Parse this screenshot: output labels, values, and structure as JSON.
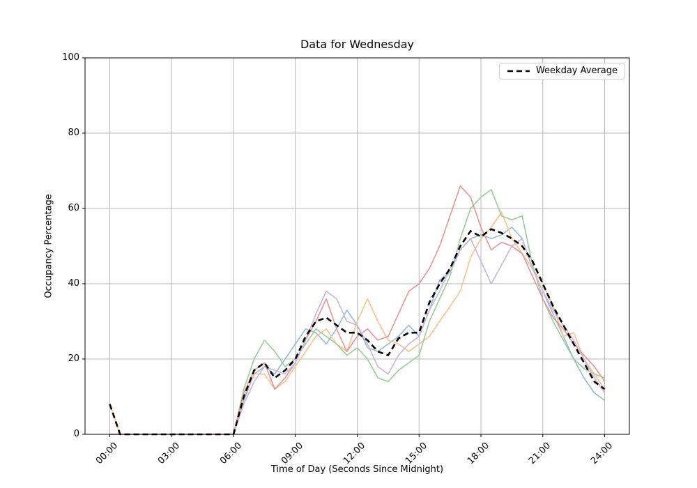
{
  "chart_data": {
    "type": "line",
    "title": "Data for Wednesday",
    "xlabel": "Time of Day (Seconds Since Midnight)",
    "ylabel": "Occupancy Percentage",
    "grid": true,
    "legend_position": "upper right",
    "legend_entries": [
      "Weekday Average"
    ],
    "ylim": [
      0,
      100
    ],
    "xlim_hours": [
      -1.2,
      25.2
    ],
    "x_start_hour": 0,
    "x_step_hours": 0.5,
    "y_ticks": [
      {
        "value": 0,
        "label": "0"
      },
      {
        "value": 20,
        "label": "20"
      },
      {
        "value": 40,
        "label": "40"
      },
      {
        "value": 60,
        "label": "60"
      },
      {
        "value": 80,
        "label": "80"
      },
      {
        "value": 100,
        "label": "100"
      }
    ],
    "x_ticks": [
      {
        "hour": 0,
        "label": "00:00"
      },
      {
        "hour": 3,
        "label": "03:00"
      },
      {
        "hour": 6,
        "label": "06:00"
      },
      {
        "hour": 9,
        "label": "09:00"
      },
      {
        "hour": 12,
        "label": "12:00"
      },
      {
        "hour": 15,
        "label": "15:00"
      },
      {
        "hour": 18,
        "label": "18:00"
      },
      {
        "hour": 21,
        "label": "21:00"
      },
      {
        "hour": 24,
        "label": "24:00"
      }
    ],
    "colors": {
      "grid": "#b8b8b8",
      "spine": "#000000",
      "average": "#000000",
      "series_blue": "#8fbbd9",
      "series_orange": "#ffbf86",
      "series_green": "#95cf95",
      "series_red": "#ea9394",
      "series_purple": "#c9b3de"
    },
    "series": [
      {
        "name": "series-1-blue",
        "color": "#8fbbd9",
        "style": "solid",
        "line_width": 1.6,
        "values": [
          0,
          0,
          0,
          0,
          0,
          0,
          0,
          0,
          0,
          0,
          0,
          0,
          0,
          9,
          16,
          18,
          16,
          20,
          24,
          28,
          27,
          24,
          28,
          33,
          29,
          23,
          22,
          24,
          26,
          29,
          26,
          33,
          41,
          43,
          49,
          52,
          53,
          52,
          53,
          55,
          52,
          44,
          38,
          32,
          26,
          20,
          15,
          11,
          9
        ]
      },
      {
        "name": "series-2-orange",
        "color": "#ffbf86",
        "style": "solid",
        "line_width": 1.6,
        "values": [
          8,
          0,
          0,
          0,
          0,
          0,
          0,
          0,
          0,
          0,
          0,
          0,
          0,
          10,
          16,
          16,
          12,
          14,
          18,
          22,
          26,
          28,
          24,
          22,
          30,
          36,
          30,
          25,
          24,
          22,
          24,
          26,
          30,
          34,
          38,
          47,
          52,
          55,
          59,
          52,
          48,
          44,
          40,
          34,
          26,
          27,
          20,
          16,
          12
        ]
      },
      {
        "name": "series-3-green",
        "color": "#95cf95",
        "style": "solid",
        "line_width": 1.6,
        "values": [
          0,
          0,
          0,
          0,
          0,
          0,
          0,
          0,
          0,
          0,
          0,
          0,
          0,
          12,
          20,
          25,
          22,
          18,
          20,
          24,
          28,
          26,
          24,
          21,
          23,
          20,
          15,
          14,
          17,
          19,
          21,
          30,
          36,
          42,
          52,
          60,
          63,
          65,
          58,
          57,
          58,
          45,
          36,
          30,
          25,
          20,
          17.5,
          16,
          15
        ]
      },
      {
        "name": "series-4-red",
        "color": "#ea9394",
        "style": "solid",
        "line_width": 1.6,
        "values": [
          0,
          0,
          0,
          0,
          0,
          0,
          0,
          0,
          0,
          0,
          0,
          0,
          0,
          11,
          17,
          19,
          12,
          15,
          19,
          25,
          30,
          36,
          28,
          22,
          26,
          28,
          25,
          26,
          32,
          38,
          40,
          44,
          50,
          58,
          66,
          63,
          55,
          49,
          51,
          50,
          48,
          42,
          36,
          31,
          28,
          24,
          21,
          18,
          14
        ]
      },
      {
        "name": "series-5-purple",
        "color": "#c9b3de",
        "style": "solid",
        "line_width": 1.6,
        "values": [
          0,
          0,
          0,
          0,
          0,
          0,
          0,
          0,
          0,
          0,
          0,
          0,
          0,
          8,
          14,
          18,
          17,
          16,
          19,
          25,
          32,
          38,
          36,
          30,
          29,
          24,
          18,
          16,
          21,
          24,
          26,
          33,
          38,
          44,
          49,
          52,
          46,
          40,
          45,
          50,
          52,
          44,
          38,
          33,
          29,
          25,
          20,
          15,
          11
        ]
      },
      {
        "name": "Weekday Average",
        "color": "#000000",
        "style": "dashed",
        "line_width": 2.6,
        "values": [
          8,
          0,
          0,
          0,
          0,
          0,
          0,
          0,
          0,
          0,
          0,
          0,
          0,
          10,
          17,
          19,
          15,
          17,
          20,
          26,
          30,
          31,
          29,
          27,
          27,
          25,
          22,
          21,
          25.5,
          27,
          27,
          35,
          40,
          44,
          50,
          54,
          52.5,
          54.5,
          53.5,
          52,
          50,
          46,
          40,
          34,
          29,
          24,
          19,
          14,
          12
        ]
      }
    ]
  }
}
